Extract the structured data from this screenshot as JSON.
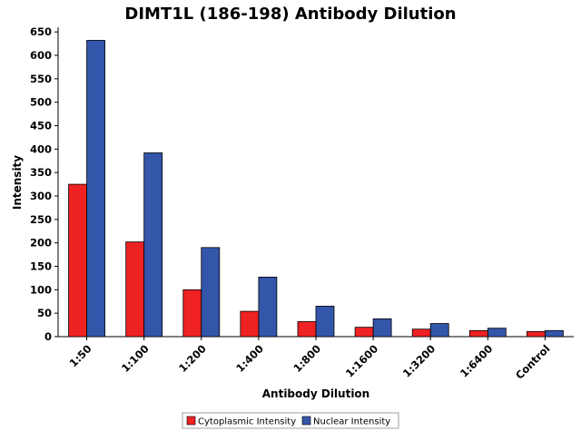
{
  "chart_data": {
    "type": "bar",
    "title": "DIMT1L (186-198) Antibody Dilution",
    "xlabel": "Antibody Dilution",
    "ylabel": "Intensity",
    "categories": [
      "1:50",
      "1:100",
      "1:200",
      "1:400",
      "1:800",
      "1:1600",
      "1:3200",
      "1:6400",
      "Control"
    ],
    "series": [
      {
        "name": "Cytoplasmic Intensity",
        "color": "#ee2222",
        "values": [
          325,
          202,
          100,
          54,
          32,
          20,
          16,
          13,
          11
        ]
      },
      {
        "name": "Nuclear Intensity",
        "color": "#3355aa",
        "values": [
          632,
          392,
          190,
          127,
          65,
          38,
          28,
          18,
          13
        ]
      }
    ],
    "ylim": [
      0,
      660
    ],
    "yticks": [
      0,
      50,
      100,
      150,
      200,
      250,
      300,
      350,
      400,
      450,
      500,
      550,
      600,
      650
    ],
    "grid": false,
    "legend_position": "bottom-center"
  }
}
